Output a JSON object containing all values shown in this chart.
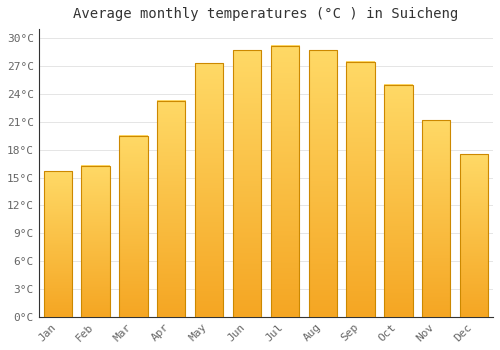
{
  "months": [
    "Jan",
    "Feb",
    "Mar",
    "Apr",
    "May",
    "Jun",
    "Jul",
    "Aug",
    "Sep",
    "Oct",
    "Nov",
    "Dec"
  ],
  "temperatures": [
    15.7,
    16.3,
    19.5,
    23.3,
    27.3,
    28.7,
    29.2,
    28.7,
    27.5,
    25.0,
    21.2,
    17.5
  ],
  "title": "Average monthly temperatures (°C ) in Suicheng",
  "bar_color_bottom": "#F5A623",
  "bar_color_top": "#FFD966",
  "ylim": [
    0,
    31
  ],
  "yticks": [
    0,
    3,
    6,
    9,
    12,
    15,
    18,
    21,
    24,
    27,
    30
  ],
  "ytick_labels": [
    "0°C",
    "3°C",
    "6°C",
    "9°C",
    "12°C",
    "15°C",
    "18°C",
    "21°C",
    "24°C",
    "27°C",
    "30°C"
  ],
  "background_color": "#FFFFFF",
  "grid_color": "#E0E0E0",
  "title_fontsize": 10,
  "tick_fontsize": 8,
  "bar_edge_color": "#CC8800",
  "bar_width": 0.75,
  "spine_color": "#333333"
}
